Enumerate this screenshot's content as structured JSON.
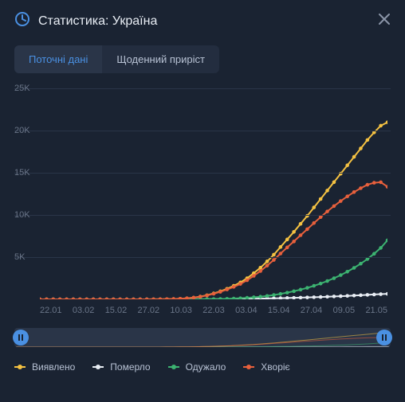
{
  "header": {
    "title": "Статистика: Україна",
    "icon": "stats-clock-icon"
  },
  "tabs": {
    "active": "Поточні дані",
    "inactive": "Щоденний приріст"
  },
  "chart": {
    "type": "line",
    "background_color": "#1a2332",
    "grid_color": "#2a3548",
    "axis_font_color": "#6a7588",
    "axis_fontsize": 11,
    "ylim": [
      0,
      25500
    ],
    "ytick_step": 5000,
    "yticks_labels": [
      "25K",
      "20K",
      "15K",
      "10K",
      "5K"
    ],
    "xticks_labels": [
      "22.01",
      "03.02",
      "15.02",
      "27.02",
      "10.03",
      "22.03",
      "03.04",
      "15.04",
      "27.04",
      "09.05",
      "21.05"
    ],
    "line_width": 2,
    "marker_style": "circle",
    "marker_size": 3,
    "series": [
      {
        "name": "Виявлено",
        "color": "#f5c242",
        "data": [
          0,
          0,
          0,
          0,
          0,
          0,
          0,
          0,
          0,
          0,
          0,
          0,
          0,
          0,
          0,
          0,
          0,
          5,
          10,
          20,
          40,
          70,
          120,
          200,
          320,
          480,
          700,
          950,
          1250,
          1600,
          2000,
          2500,
          3100,
          3750,
          4500,
          5300,
          6200,
          7100,
          8000,
          8950,
          9900,
          10900,
          11900,
          12900,
          13900,
          14900,
          15900,
          16900,
          17900,
          18900,
          19800,
          20600,
          21000
        ]
      },
      {
        "name": "Померло",
        "color": "#e8edf4",
        "data": [
          0,
          0,
          0,
          0,
          0,
          0,
          0,
          0,
          0,
          0,
          0,
          0,
          0,
          0,
          0,
          0,
          0,
          0,
          0,
          0,
          1,
          2,
          3,
          5,
          8,
          11,
          15,
          20,
          27,
          35,
          45,
          57,
          70,
          85,
          100,
          117,
          135,
          155,
          176,
          198,
          222,
          248,
          276,
          306,
          338,
          372,
          408,
          446,
          486,
          528,
          572,
          610,
          650
        ]
      },
      {
        "name": "Одужало",
        "color": "#3cb371",
        "data": [
          0,
          0,
          0,
          0,
          0,
          0,
          0,
          0,
          0,
          0,
          0,
          0,
          0,
          0,
          0,
          0,
          0,
          0,
          0,
          0,
          0,
          1,
          2,
          4,
          8,
          15,
          25,
          40,
          60,
          90,
          130,
          180,
          240,
          310,
          400,
          510,
          640,
          790,
          960,
          1150,
          1360,
          1600,
          1870,
          2170,
          2500,
          2870,
          3280,
          3730,
          4230,
          4780,
          5400,
          6100,
          7000
        ]
      },
      {
        "name": "Хворіє",
        "color": "#e8603c",
        "data": [
          0,
          0,
          0,
          0,
          0,
          0,
          0,
          0,
          0,
          0,
          0,
          0,
          0,
          0,
          0,
          0,
          0,
          5,
          10,
          20,
          39,
          67,
          115,
          191,
          304,
          454,
          660,
          890,
          1163,
          1475,
          1825,
          2263,
          2790,
          3355,
          4000,
          4673,
          5425,
          6155,
          6864,
          7602,
          8318,
          9052,
          9754,
          10424,
          11062,
          11658,
          12212,
          12724,
          13184,
          13592,
          13828,
          13890,
          13350
        ]
      }
    ],
    "legend": {
      "position": "bottom-left",
      "fontsize": 12,
      "text_color": "#b8c2d4"
    }
  },
  "timeline": {
    "handle_color": "#4a90e2",
    "track_color": "#2a3548"
  }
}
